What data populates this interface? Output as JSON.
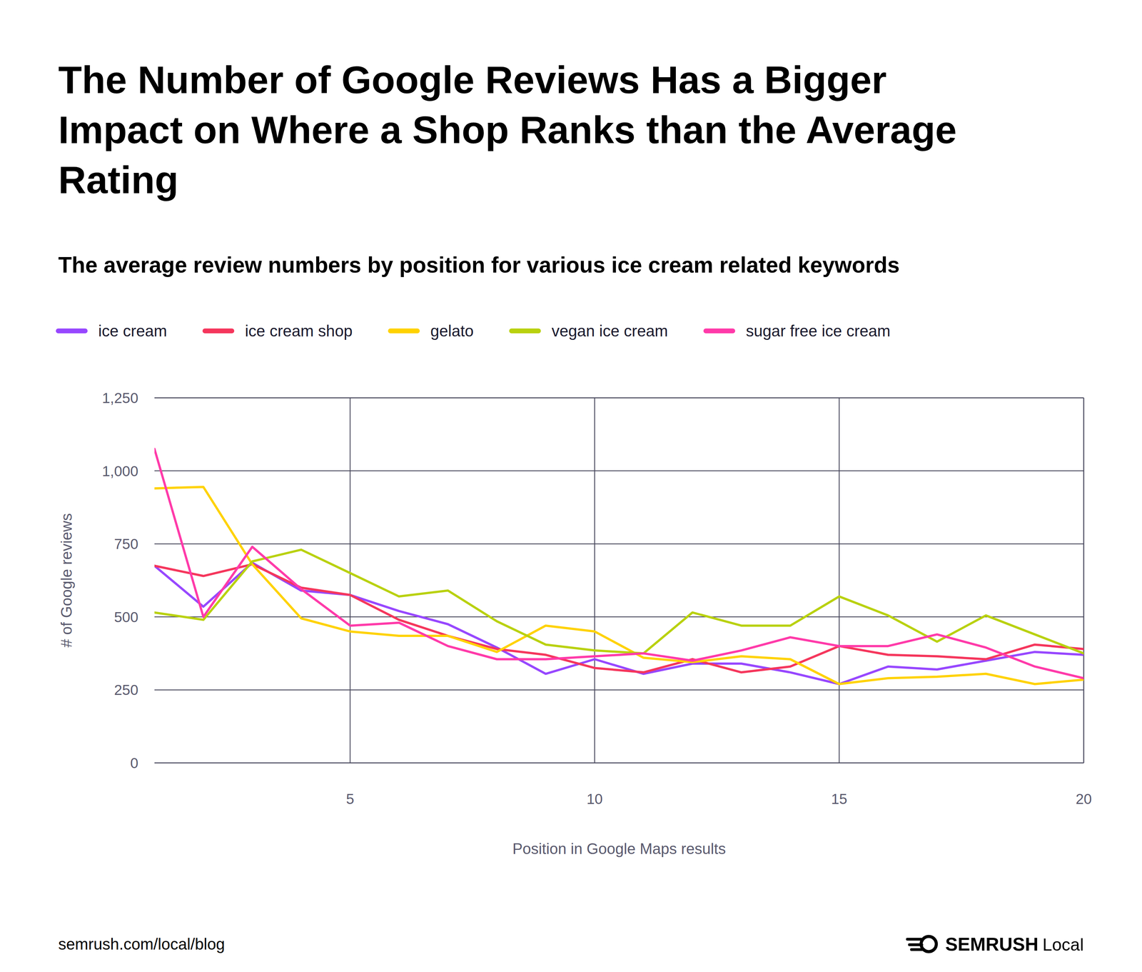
{
  "chart_data": {
    "type": "line",
    "title": "The Number of Google Reviews Has a Bigger Impact on Where a Shop Ranks than the Average Rating",
    "subtitle": "The average review numbers by position for various ice cream related keywords",
    "x_label": "Position in Google Maps results",
    "y_label": "# of Google reviews",
    "footer": "semrush.com/local/blog",
    "brand": "SEMRUSH",
    "brand_suffix": "Local",
    "x": [
      1,
      2,
      3,
      4,
      5,
      6,
      7,
      8,
      9,
      10,
      11,
      12,
      13,
      14,
      15,
      16,
      17,
      18,
      19,
      20
    ],
    "series": [
      {
        "name": "ice cream",
        "color": "#9747ff",
        "values": [
          675,
          535,
          685,
          590,
          575,
          520,
          475,
          395,
          305,
          355,
          305,
          340,
          340,
          310,
          270,
          330,
          320,
          350,
          380,
          370
        ]
      },
      {
        "name": "ice cream shop",
        "color": "#f5365c",
        "values": [
          675,
          640,
          680,
          600,
          575,
          490,
          435,
          390,
          370,
          325,
          310,
          355,
          310,
          330,
          400,
          370,
          365,
          355,
          405,
          390
        ]
      },
      {
        "name": "gelato",
        "color": "#ffd200",
        "values": [
          940,
          945,
          680,
          495,
          450,
          435,
          435,
          380,
          470,
          450,
          360,
          345,
          365,
          355,
          270,
          290,
          295,
          305,
          270,
          285
        ]
      },
      {
        "name": "vegan ice cream",
        "color": "#b9d10f",
        "values": [
          515,
          490,
          690,
          730,
          650,
          570,
          590,
          485,
          405,
          385,
          375,
          515,
          470,
          470,
          570,
          505,
          415,
          505,
          440,
          375
        ]
      },
      {
        "name": "sugar free ice cream",
        "color": "#ff3aa9",
        "values": [
          1075,
          500,
          740,
          595,
          470,
          480,
          400,
          355,
          355,
          365,
          375,
          350,
          385,
          430,
          400,
          400,
          440,
          395,
          330,
          290
        ]
      }
    ],
    "xlim": [
      1,
      20
    ],
    "xticks": [
      5,
      10,
      15,
      20
    ],
    "ylim": [
      0,
      1250
    ],
    "yticks": [
      0,
      250,
      500,
      750,
      {
        "value": 1000,
        "label": "1,000"
      },
      {
        "value": 1250,
        "label": "1,250"
      }
    ],
    "grid": true,
    "legend": "top"
  }
}
